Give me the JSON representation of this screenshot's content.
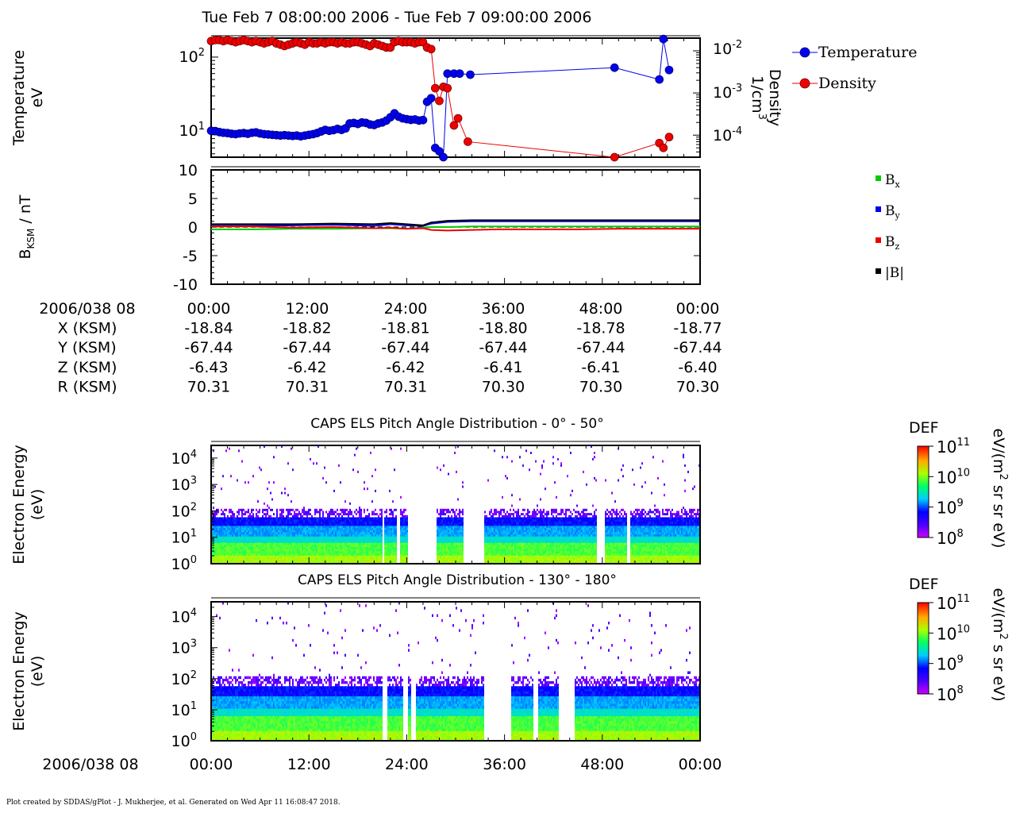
{
  "title": "Tue Feb 7 08:00:00 2006 - Tue Feb 7 09:00:00 2006",
  "footer": "Plot created by SDDAS/gPlot - J. Mukherjee, et al.  Generated on Wed Apr 11 16:08:47 2018.",
  "colors": {
    "temperature": "#0000ee",
    "density": "#ee0000",
    "bx": "#00cc00",
    "by": "#0000ee",
    "bz": "#ee0000",
    "bmag": "#000000"
  },
  "panel1": {
    "ylabel_left_1": "Temperature",
    "ylabel_left_2": "eV",
    "ylabel_right_1": "Density",
    "ylabel_right_2": "1/cm",
    "ylabel_right_sup": "3",
    "left_ticks": [
      "10",
      "10"
    ],
    "left_tick_exps": [
      "2",
      "1"
    ],
    "right_ticks": [
      "10",
      "10",
      "10"
    ],
    "right_tick_exps": [
      "-2",
      "-3",
      "-4"
    ],
    "legend": [
      "Temperature",
      "Density"
    ]
  },
  "panel2": {
    "ylabel_main": "B",
    "ylabel_sub": "KSM",
    "ylabel_tail": " / nT",
    "ticks": [
      "10",
      "5",
      "0",
      "-5",
      "-10"
    ],
    "legend": [
      {
        "main": "B",
        "sub": "x"
      },
      {
        "main": "B",
        "sub": "y"
      },
      {
        "main": "B",
        "sub": "z"
      },
      {
        "main": "|B|",
        "sub": ""
      }
    ]
  },
  "ephemeris": {
    "rows": [
      {
        "label": "2006/038 08",
        "values": [
          "00:00",
          "12:00",
          "24:00",
          "36:00",
          "48:00",
          "00:00"
        ]
      },
      {
        "label": "X (KSM)",
        "values": [
          "-18.84",
          "-18.82",
          "-18.81",
          "-18.80",
          "-18.78",
          "-18.77"
        ]
      },
      {
        "label": "Y (KSM)",
        "values": [
          "-67.44",
          "-67.44",
          "-67.44",
          "-67.44",
          "-67.44",
          "-67.44"
        ]
      },
      {
        "label": "Z (KSM)",
        "values": [
          "-6.43",
          "-6.42",
          "-6.42",
          "-6.41",
          "-6.41",
          "-6.40"
        ]
      },
      {
        "label": "R (KSM)",
        "values": [
          "70.31",
          "70.31",
          "70.31",
          "70.30",
          "70.30",
          "70.30"
        ]
      }
    ]
  },
  "spectrograms": [
    {
      "title": "CAPS ELS Pitch Angle Distribution - 0° - 50°",
      "ylabel_1": "Electron Energy",
      "ylabel_2": "(eV)",
      "cbar_title": "DEF",
      "cbar_unit": "eV/(m",
      "cbar_unit_sup": "2",
      "cbar_unit_tail": " sr sr eV)"
    },
    {
      "title": "CAPS ELS Pitch Angle Distribution - 130° - 180°",
      "ylabel_1": "Electron Energy",
      "ylabel_2": "(eV)",
      "cbar_title": "DEF",
      "cbar_unit": "eV/(m",
      "cbar_unit_sup": "2",
      "cbar_unit_tail": " s sr eV)"
    }
  ],
  "spectrogram_yticks": {
    "base": "10",
    "exps": [
      "4",
      "3",
      "2",
      "1",
      "0"
    ]
  },
  "colorbar_ticks": {
    "base": "10",
    "exps": [
      "11",
      "10",
      "9",
      "8"
    ]
  },
  "bottom_axis": {
    "label": "2006/038 08",
    "ticks": [
      "00:00",
      "12:00",
      "24:00",
      "36:00",
      "48:00",
      "00:00"
    ]
  },
  "chart_data": [
    {
      "type": "line",
      "title": "Tue Feb 7 08:00:00 2006 - Tue Feb 7 09:00:00 2006",
      "x_unit": "minutes after 08:00",
      "xlim": [
        0,
        60
      ],
      "series": [
        {
          "name": "Temperature",
          "axis": "left",
          "unit": "eV",
          "scale": "log",
          "ylim": [
            4.5,
            180
          ],
          "x": [
            0,
            0.5,
            1,
            1.5,
            2,
            2.5,
            3,
            3.5,
            4,
            4.5,
            5,
            5.5,
            6,
            6.5,
            7,
            7.5,
            8,
            8.5,
            9,
            9.5,
            10,
            10.5,
            11,
            11.5,
            12,
            12.5,
            13,
            13.5,
            14,
            14.5,
            15,
            15.5,
            16,
            16.5,
            17,
            17.5,
            18,
            18.5,
            19,
            19.5,
            20,
            20.5,
            21,
            21.5,
            22,
            22.5,
            23,
            23.5,
            24,
            24.5,
            25,
            25.5,
            26,
            26.5,
            27,
            27.5,
            28,
            28.5,
            29,
            29.8,
            30.5,
            31.8,
            49.5,
            55,
            55.5,
            56.2
          ],
          "y": [
            10.2,
            10.1,
            9.8,
            9.6,
            9.5,
            9.3,
            9.2,
            9.4,
            9.5,
            9.3,
            9.6,
            9.7,
            9.4,
            9.2,
            9.1,
            9.0,
            8.9,
            8.8,
            8.9,
            8.8,
            8.7,
            8.8,
            8.6,
            8.8,
            9.0,
            9.2,
            9.5,
            10.0,
            10.5,
            10.2,
            10.4,
            10.8,
            10.5,
            11.0,
            12.8,
            13.0,
            12.6,
            13.2,
            13.0,
            12.4,
            12.2,
            12.8,
            13.2,
            14.0,
            15.5,
            17.5,
            15.8,
            15.0,
            14.6,
            14.3,
            14.5,
            14.0,
            14.2,
            25,
            28,
            6.0,
            5.4,
            4.5,
            60,
            60,
            60,
            58,
            72,
            50,
            175,
            67
          ]
        },
        {
          "name": "Density",
          "axis": "right",
          "unit": "1/cm3",
          "scale": "log",
          "ylim": [
            3e-05,
            0.02
          ],
          "x": [
            0,
            0.5,
            1,
            1.5,
            2,
            2.5,
            3,
            3.5,
            4,
            4.5,
            5,
            5.5,
            6,
            6.5,
            7,
            7.5,
            8,
            8.5,
            9,
            9.5,
            10,
            10.5,
            11,
            11.5,
            12,
            12.5,
            13,
            13.5,
            14,
            14.5,
            15,
            15.5,
            16,
            16.5,
            17,
            17.5,
            18,
            18.5,
            19,
            19.5,
            20,
            20.5,
            21,
            21.5,
            22,
            22.5,
            23,
            23.5,
            24,
            24.5,
            25,
            25.5,
            26,
            26.5,
            27,
            27.5,
            28,
            28.5,
            29,
            29.8,
            30.3,
            31.5,
            49.5,
            55,
            55.5,
            56.2
          ],
          "y": [
            0.017,
            0.018,
            0.018,
            0.017,
            0.018,
            0.017,
            0.016,
            0.017,
            0.018,
            0.017,
            0.016,
            0.017,
            0.016,
            0.015,
            0.016,
            0.017,
            0.015,
            0.014,
            0.013,
            0.014,
            0.015,
            0.016,
            0.015,
            0.014,
            0.016,
            0.015,
            0.015,
            0.016,
            0.015,
            0.016,
            0.016,
            0.015,
            0.016,
            0.015,
            0.015,
            0.016,
            0.016,
            0.015,
            0.014,
            0.013,
            0.015,
            0.014,
            0.013,
            0.012,
            0.012,
            0.016,
            0.017,
            0.016,
            0.016,
            0.016,
            0.015,
            0.016,
            0.016,
            0.012,
            0.011,
            0.0013,
            0.00065,
            0.0014,
            0.0013,
            0.00017,
            0.00025,
            7e-05,
            3e-05,
            6.5e-05,
            5e-05,
            9e-05
          ]
        }
      ]
    },
    {
      "type": "line",
      "ylabel": "BKSM / nT",
      "x_unit": "minutes after 08:00",
      "xlim": [
        0,
        60
      ],
      "ylim": [
        -10,
        10
      ],
      "x": [
        0,
        5,
        10,
        15,
        20,
        22,
        24,
        26,
        27,
        29,
        32,
        35,
        40,
        45,
        50,
        55,
        60
      ],
      "series": [
        {
          "name": "Bx",
          "values": [
            -0.4,
            -0.4,
            -0.3,
            -0.3,
            -0.2,
            -0.2,
            -0.3,
            -0.1,
            0.0,
            0.0,
            0.1,
            0.1,
            0.1,
            0.1,
            0.1,
            0.1,
            0.1
          ]
        },
        {
          "name": "By",
          "values": [
            0.2,
            0.2,
            0.3,
            0.4,
            0.2,
            0.5,
            0.3,
            0.2,
            0.6,
            0.9,
            1.0,
            1.0,
            1.0,
            1.0,
            1.0,
            1.0,
            1.0
          ]
        },
        {
          "name": "Bz",
          "values": [
            0.1,
            0.1,
            -0.1,
            0.0,
            -0.2,
            -0.1,
            -0.3,
            -0.2,
            -0.5,
            -0.6,
            -0.5,
            -0.4,
            -0.4,
            -0.4,
            -0.3,
            -0.3,
            -0.3
          ]
        },
        {
          "name": "|B|",
          "values": [
            0.5,
            0.5,
            0.5,
            0.6,
            0.5,
            0.7,
            0.5,
            0.3,
            0.8,
            1.1,
            1.2,
            1.2,
            1.2,
            1.2,
            1.2,
            1.2,
            1.2
          ]
        }
      ]
    },
    {
      "type": "heatmap",
      "title": "CAPS ELS Pitch Angle Distribution - 0° - 50°",
      "ylabel": "Electron Energy (eV)",
      "y_scale": "log",
      "ylim": [
        1,
        30000
      ],
      "x_unit": "minutes after 08:00",
      "xlim": [
        0,
        60
      ],
      "color_scale": "log",
      "clim": [
        100000000.0,
        100000000000.0
      ],
      "colorbar_label": "DEF",
      "data_gaps_minutes": [
        [
          20.9,
          21.2
        ],
        [
          22.7,
          23.1
        ],
        [
          24.0,
          27.5
        ],
        [
          26.2,
          27.6
        ],
        [
          30.8,
          33.5
        ],
        [
          47.2,
          48.3
        ],
        [
          51.0,
          51.3
        ]
      ],
      "dense_cutoff_energy_eV": 60
    },
    {
      "type": "heatmap",
      "title": "CAPS ELS Pitch Angle Distribution - 130° - 180°",
      "ylabel": "Electron Energy (eV)",
      "y_scale": "log",
      "ylim": [
        1,
        30000
      ],
      "x_unit": "minutes after 08:00",
      "xlim": [
        0,
        60
      ],
      "color_scale": "log",
      "clim": [
        100000000.0,
        100000000000.0
      ],
      "colorbar_label": "DEF",
      "data_gaps_minutes": [
        [
          21.0,
          21.6
        ],
        [
          23.5,
          24.0
        ],
        [
          24.4,
          25.1
        ],
        [
          33.4,
          36.7
        ],
        [
          39.5,
          40.1
        ],
        [
          42.5,
          44.6
        ]
      ],
      "dense_cutoff_energy_eV": 60
    }
  ]
}
